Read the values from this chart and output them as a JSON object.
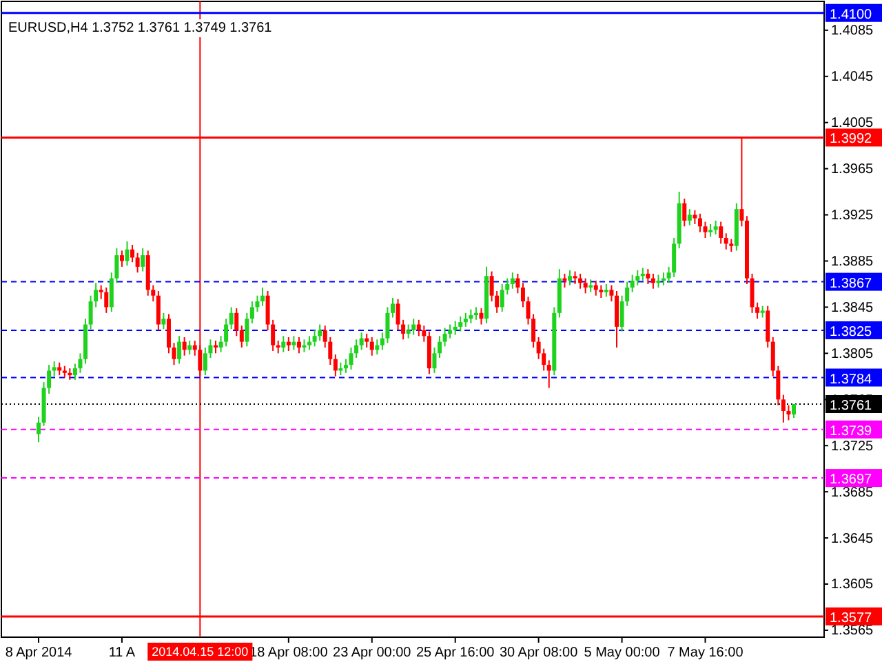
{
  "chart_data": {
    "type": "candlestick",
    "title": "EURUSD,H4  1.3752 1.3761 1.3749 1.3761",
    "categories": [
      "8 Apr 2014",
      null,
      null,
      null,
      null,
      null,
      null,
      null,
      null,
      null,
      null,
      null,
      null,
      null,
      null,
      null,
      "11 A",
      null,
      null,
      null,
      null,
      null,
      null,
      null,
      null,
      null,
      null,
      null,
      null,
      null,
      null,
      "2014.04.15 12:00",
      null,
      null,
      null,
      null,
      null,
      null,
      null,
      null,
      null,
      null,
      null,
      null,
      null,
      null,
      null,
      null,
      "18 Apr 08:00",
      null,
      null,
      null,
      null,
      null,
      null,
      null,
      null,
      null,
      null,
      null,
      null,
      null,
      null,
      null,
      "23 Apr 00:00",
      null,
      null,
      null,
      null,
      null,
      null,
      null,
      null,
      null,
      null,
      null,
      null,
      null,
      null,
      null,
      "25 Apr 16:00",
      null,
      null,
      null,
      null,
      null,
      null,
      null,
      null,
      null,
      null,
      null,
      null,
      null,
      null,
      null,
      "30 Apr 08:00",
      null,
      null,
      null,
      null,
      null,
      null,
      null,
      null,
      null,
      null,
      null,
      null,
      null,
      null,
      null,
      "5 May 00:00",
      null,
      null,
      null,
      null,
      null,
      null,
      null,
      null,
      null,
      null,
      null,
      null,
      null,
      null,
      null,
      "7 May 16:00",
      null,
      null,
      null,
      null,
      null,
      null,
      null,
      null,
      null,
      null,
      null,
      null,
      null,
      null,
      null,
      null,
      null
    ],
    "ohlc": [
      [
        1.3735,
        1.375,
        1.3728,
        1.3745
      ],
      [
        1.3745,
        1.378,
        1.3742,
        1.3775
      ],
      [
        1.3775,
        1.3795,
        1.377,
        1.379
      ],
      [
        1.379,
        1.3798,
        1.3785,
        1.3793
      ],
      [
        1.3793,
        1.3797,
        1.3786,
        1.379
      ],
      [
        1.379,
        1.3794,
        1.3784,
        1.3788
      ],
      [
        1.3788,
        1.3792,
        1.3782,
        1.3786
      ],
      [
        1.3786,
        1.3796,
        1.3782,
        1.3792
      ],
      [
        1.3792,
        1.3805,
        1.3788,
        1.38
      ],
      [
        1.38,
        1.3835,
        1.3796,
        1.383
      ],
      [
        1.383,
        1.3855,
        1.3826,
        1.385
      ],
      [
        1.385,
        1.3866,
        1.3845,
        1.386
      ],
      [
        1.386,
        1.3864,
        1.3852,
        1.3858
      ],
      [
        1.3858,
        1.3862,
        1.384,
        1.3845
      ],
      [
        1.3845,
        1.3875,
        1.3841,
        1.387
      ],
      [
        1.387,
        1.3896,
        1.3866,
        1.389
      ],
      [
        1.389,
        1.3894,
        1.388,
        1.3885
      ],
      [
        1.3885,
        1.3902,
        1.3881,
        1.3895
      ],
      [
        1.3895,
        1.3899,
        1.3884,
        1.3888
      ],
      [
        1.3888,
        1.3892,
        1.3875,
        1.388
      ],
      [
        1.388,
        1.3896,
        1.3876,
        1.389
      ],
      [
        1.389,
        1.3894,
        1.3855,
        1.386
      ],
      [
        1.386,
        1.3864,
        1.385,
        1.3855
      ],
      [
        1.3855,
        1.3859,
        1.3825,
        1.383
      ],
      [
        1.383,
        1.384,
        1.3826,
        1.3835
      ],
      [
        1.3835,
        1.3839,
        1.3805,
        1.381
      ],
      [
        1.381,
        1.3814,
        1.3795,
        1.38
      ],
      [
        1.38,
        1.382,
        1.3796,
        1.3815
      ],
      [
        1.3815,
        1.3819,
        1.3803,
        1.3808
      ],
      [
        1.3808,
        1.3816,
        1.3804,
        1.3812
      ],
      [
        1.3812,
        1.3816,
        1.3803,
        1.3808
      ],
      [
        1.3808,
        1.3812,
        1.3785,
        1.379
      ],
      [
        1.379,
        1.381,
        1.3786,
        1.3805
      ],
      [
        1.3805,
        1.3817,
        1.3801,
        1.3812
      ],
      [
        1.3812,
        1.3816,
        1.3805,
        1.381
      ],
      [
        1.381,
        1.382,
        1.3806,
        1.3815
      ],
      [
        1.3815,
        1.3835,
        1.3811,
        1.383
      ],
      [
        1.383,
        1.3845,
        1.3826,
        1.384
      ],
      [
        1.384,
        1.3844,
        1.382,
        1.3825
      ],
      [
        1.3825,
        1.3829,
        1.381,
        1.3815
      ],
      [
        1.3815,
        1.384,
        1.3811,
        1.3835
      ],
      [
        1.3835,
        1.385,
        1.3831,
        1.3845
      ],
      [
        1.3845,
        1.3855,
        1.3841,
        1.385
      ],
      [
        1.385,
        1.3862,
        1.3846,
        1.3855
      ],
      [
        1.3855,
        1.3859,
        1.3825,
        1.383
      ],
      [
        1.383,
        1.3834,
        1.3807,
        1.3812
      ],
      [
        1.3812,
        1.3816,
        1.3805,
        1.381
      ],
      [
        1.381,
        1.382,
        1.3806,
        1.3815
      ],
      [
        1.3815,
        1.3819,
        1.3807,
        1.3812
      ],
      [
        1.3812,
        1.382,
        1.3808,
        1.3815
      ],
      [
        1.3815,
        1.3819,
        1.3805,
        1.381
      ],
      [
        1.381,
        1.3817,
        1.3806,
        1.3812
      ],
      [
        1.3812,
        1.382,
        1.3808,
        1.3815
      ],
      [
        1.3815,
        1.3825,
        1.3811,
        1.382
      ],
      [
        1.382,
        1.383,
        1.3816,
        1.3825
      ],
      [
        1.3825,
        1.3829,
        1.381,
        1.3815
      ],
      [
        1.3815,
        1.3819,
        1.3795,
        1.38
      ],
      [
        1.38,
        1.3804,
        1.3785,
        1.379
      ],
      [
        1.379,
        1.3797,
        1.3786,
        1.3792
      ],
      [
        1.3792,
        1.38,
        1.3788,
        1.3795
      ],
      [
        1.3795,
        1.381,
        1.3791,
        1.3805
      ],
      [
        1.3805,
        1.3817,
        1.3801,
        1.3812
      ],
      [
        1.3812,
        1.3823,
        1.3808,
        1.3818
      ],
      [
        1.3818,
        1.3822,
        1.381,
        1.3815
      ],
      [
        1.3815,
        1.3819,
        1.3803,
        1.3808
      ],
      [
        1.3808,
        1.3817,
        1.3804,
        1.3812
      ],
      [
        1.3812,
        1.3823,
        1.3808,
        1.3818
      ],
      [
        1.3818,
        1.3845,
        1.3814,
        1.384
      ],
      [
        1.384,
        1.3853,
        1.3836,
        1.3848
      ],
      [
        1.3848,
        1.3852,
        1.3825,
        1.383
      ],
      [
        1.383,
        1.3834,
        1.3817,
        1.3822
      ],
      [
        1.3822,
        1.383,
        1.3818,
        1.3825
      ],
      [
        1.3825,
        1.3835,
        1.3821,
        1.383
      ],
      [
        1.383,
        1.3834,
        1.382,
        1.3825
      ],
      [
        1.3825,
        1.3829,
        1.3815,
        1.382
      ],
      [
        1.382,
        1.3824,
        1.3787,
        1.3792
      ],
      [
        1.3792,
        1.381,
        1.3788,
        1.3805
      ],
      [
        1.3805,
        1.382,
        1.3801,
        1.3815
      ],
      [
        1.3815,
        1.3827,
        1.3811,
        1.3822
      ],
      [
        1.3822,
        1.383,
        1.3818,
        1.3825
      ],
      [
        1.3825,
        1.3833,
        1.3821,
        1.3828
      ],
      [
        1.3828,
        1.3837,
        1.3824,
        1.3832
      ],
      [
        1.3832,
        1.384,
        1.3828,
        1.3835
      ],
      [
        1.3835,
        1.3843,
        1.3831,
        1.3838
      ],
      [
        1.3838,
        1.3845,
        1.3834,
        1.384
      ],
      [
        1.384,
        1.3844,
        1.383,
        1.3835
      ],
      [
        1.3835,
        1.388,
        1.3831,
        1.3872
      ],
      [
        1.3872,
        1.3876,
        1.385,
        1.3855
      ],
      [
        1.3855,
        1.3859,
        1.384,
        1.3845
      ],
      [
        1.3845,
        1.3865,
        1.3841,
        1.386
      ],
      [
        1.386,
        1.387,
        1.3856,
        1.3865
      ],
      [
        1.3865,
        1.3875,
        1.3861,
        1.387
      ],
      [
        1.387,
        1.3874,
        1.3857,
        1.3862
      ],
      [
        1.3862,
        1.3866,
        1.3845,
        1.385
      ],
      [
        1.385,
        1.3854,
        1.383,
        1.3835
      ],
      [
        1.3835,
        1.3839,
        1.381,
        1.3815
      ],
      [
        1.3815,
        1.3819,
        1.38,
        1.3805
      ],
      [
        1.3805,
        1.3809,
        1.379,
        1.3795
      ],
      [
        1.3795,
        1.3799,
        1.3775,
        1.379
      ],
      [
        1.379,
        1.3845,
        1.3786,
        1.384
      ],
      [
        1.384,
        1.3878,
        1.3836,
        1.387
      ],
      [
        1.387,
        1.3874,
        1.3862,
        1.3868
      ],
      [
        1.3868,
        1.3877,
        1.3864,
        1.3872
      ],
      [
        1.3872,
        1.3876,
        1.3865,
        1.387
      ],
      [
        1.387,
        1.3874,
        1.3861,
        1.3866
      ],
      [
        1.3866,
        1.387,
        1.3857,
        1.3862
      ],
      [
        1.3862,
        1.3869,
        1.3858,
        1.3864
      ],
      [
        1.3864,
        1.3868,
        1.3855,
        1.386
      ],
      [
        1.386,
        1.3864,
        1.3853,
        1.3858
      ],
      [
        1.3858,
        1.3865,
        1.3854,
        1.386
      ],
      [
        1.386,
        1.3864,
        1.385,
        1.3855
      ],
      [
        1.3855,
        1.3859,
        1.381,
        1.3828
      ],
      [
        1.3828,
        1.3855,
        1.3824,
        1.385
      ],
      [
        1.385,
        1.3867,
        1.3846,
        1.3862
      ],
      [
        1.3862,
        1.3873,
        1.3858,
        1.3868
      ],
      [
        1.3868,
        1.3877,
        1.3864,
        1.3872
      ],
      [
        1.3872,
        1.3879,
        1.3868,
        1.3874
      ],
      [
        1.3874,
        1.3878,
        1.3865,
        1.387
      ],
      [
        1.387,
        1.3874,
        1.3861,
        1.3866
      ],
      [
        1.3866,
        1.3873,
        1.3862,
        1.3868
      ],
      [
        1.3868,
        1.3875,
        1.3864,
        1.387
      ],
      [
        1.387,
        1.388,
        1.3866,
        1.3875
      ],
      [
        1.3875,
        1.3905,
        1.3871,
        1.39
      ],
      [
        1.39,
        1.3945,
        1.3896,
        1.3935
      ],
      [
        1.3935,
        1.3939,
        1.3915,
        1.392
      ],
      [
        1.392,
        1.393,
        1.3916,
        1.3925
      ],
      [
        1.3925,
        1.3929,
        1.3917,
        1.3922
      ],
      [
        1.3922,
        1.3926,
        1.391,
        1.3915
      ],
      [
        1.3915,
        1.3919,
        1.3905,
        1.391
      ],
      [
        1.391,
        1.3917,
        1.3906,
        1.3912
      ],
      [
        1.3912,
        1.392,
        1.3908,
        1.3915
      ],
      [
        1.3915,
        1.3919,
        1.39,
        1.3905
      ],
      [
        1.3905,
        1.3909,
        1.3895,
        1.39
      ],
      [
        1.39,
        1.3904,
        1.3893,
        1.3898
      ],
      [
        1.3898,
        1.3935,
        1.3894,
        1.393
      ],
      [
        1.393,
        1.3992,
        1.3915,
        1.392
      ],
      [
        1.392,
        1.3924,
        1.3865,
        1.387
      ],
      [
        1.387,
        1.3874,
        1.384,
        1.3845
      ],
      [
        1.3845,
        1.3849,
        1.3835,
        1.384
      ],
      [
        1.384,
        1.3846,
        1.3836,
        1.3842
      ],
      [
        1.3842,
        1.3846,
        1.381,
        1.3815
      ],
      [
        1.3815,
        1.3819,
        1.3785,
        1.379
      ],
      [
        1.379,
        1.3794,
        1.376,
        1.3765
      ],
      [
        1.3765,
        1.3769,
        1.3745,
        1.3755
      ],
      [
        1.3755,
        1.376,
        1.3747,
        1.3752
      ],
      [
        1.3752,
        1.3761,
        1.3749,
        1.3761
      ]
    ],
    "ylim": [
      1.3559,
      1.411
    ],
    "yticks": [
      1.4085,
      1.4045,
      1.4005,
      1.3965,
      1.3925,
      1.3885,
      1.3845,
      1.3805,
      1.3765,
      1.3725,
      1.3685,
      1.3645,
      1.3605,
      1.3565
    ],
    "ref_lines": [
      {
        "axis": "x",
        "value": "2014.04.15 12:00",
        "color": "#ff0000",
        "line_style": "solid"
      },
      {
        "axis": "y",
        "value": 1.41,
        "label": "1.4100",
        "color": "#0000ff",
        "line_style": "solid"
      },
      {
        "axis": "y",
        "value": 1.3992,
        "label": "1.3992",
        "color": "#ff0000",
        "line_style": "solid"
      },
      {
        "axis": "y",
        "value": 1.3867,
        "label": "1.3867",
        "color": "#0000ff",
        "line_style": "dashed"
      },
      {
        "axis": "y",
        "value": 1.3825,
        "label": "1.3825",
        "color": "#0000ff",
        "line_style": "dashed"
      },
      {
        "axis": "y",
        "value": 1.3784,
        "label": "1.3784",
        "color": "#0000ff",
        "line_style": "dashed"
      },
      {
        "axis": "y",
        "value": 1.3761,
        "label": "1.3761",
        "color": "#000000",
        "line_style": "dotted"
      },
      {
        "axis": "y",
        "value": 1.3739,
        "label": "1.3739",
        "color": "#ff00ff",
        "line_style": "dashed"
      },
      {
        "axis": "y",
        "value": 1.3697,
        "label": "1.3697",
        "color": "#ff00ff",
        "line_style": "dashed"
      },
      {
        "axis": "y",
        "value": 1.3577,
        "label": "1.3577",
        "color": "#ff0000",
        "line_style": "solid"
      }
    ],
    "grid": false
  }
}
